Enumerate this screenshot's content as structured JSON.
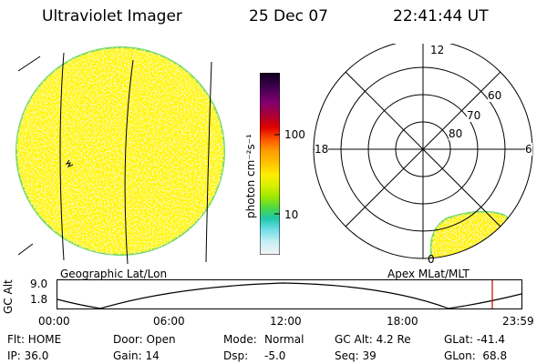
{
  "header": {
    "instrument": "Ultraviolet Imager",
    "date": "25 Dec 07",
    "time": "22:41:44 UT"
  },
  "colorbar": {
    "unit_label": "photon cm⁻²s⁻¹",
    "tick_labels": [
      "100",
      "10"
    ],
    "scale": "log",
    "colors_top_to_bottom": [
      "#100020",
      "#400050",
      "#800070",
      "#b00030",
      "#e00000",
      "#ff5a00",
      "#ff9d00",
      "#ffc400",
      "#ffee00",
      "#d8f000",
      "#a0e800",
      "#50d840",
      "#20c8a8",
      "#6fdde8",
      "#c8eef4",
      "#f4f4f4"
    ]
  },
  "left_panel": {
    "caption": "Geographic Lat/Lon"
  },
  "right_panel": {
    "caption": "Apex MLat/MLT",
    "mlt_labels": [
      "12",
      "18",
      "6",
      "0"
    ],
    "mlat_labels": [
      "60",
      "70",
      "80"
    ]
  },
  "altitude_plot": {
    "axis_label": "GC Alt",
    "y_ticks": [
      "9.0",
      "1.8"
    ],
    "x_ticks": [
      "00:00",
      "06:00",
      "12:00",
      "18:00",
      "23:59"
    ],
    "current_time_marker_color": "#cc0000"
  },
  "status": {
    "flt": "Flt: HOME",
    "door": "Door: Open",
    "mode_label": "Mode:",
    "mode_value": "Normal",
    "gc_alt": "GC Alt: 4.2 Re",
    "glat": "GLat: -41.4",
    "ip": "IP: 36.0",
    "gain": "Gain: 14",
    "dsp_label": "Dsp:",
    "dsp_value": "-5.0",
    "seq": "Seq: 39",
    "glon": "GLon:  68.8"
  }
}
